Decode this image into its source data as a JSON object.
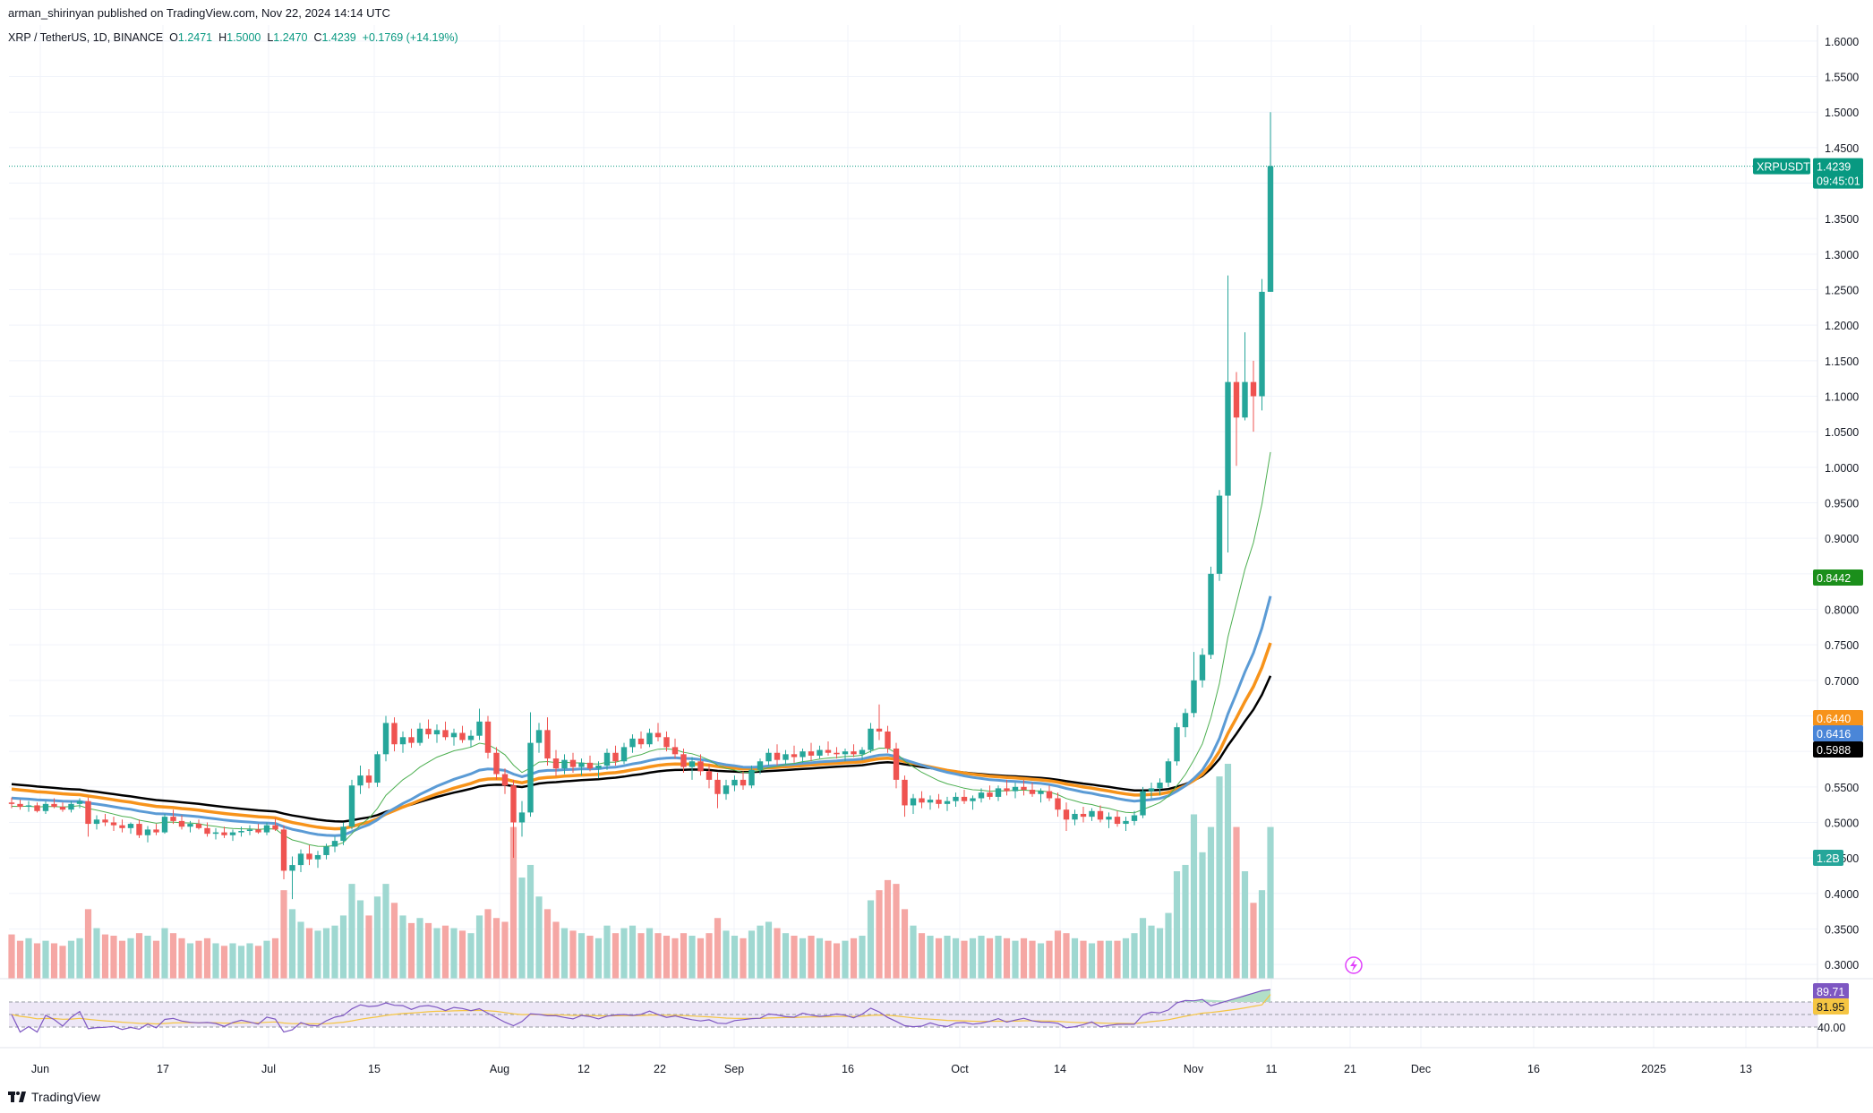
{
  "header": {
    "publisher": "arman_shirinyan published on TradingView.com, Nov 22, 2024 14:14 UTC",
    "symbol": "XRP / TetherUS, 1D, BINANCE",
    "o_label": "O",
    "o_value": "1.2471",
    "h_label": "H",
    "h_value": "1.5000",
    "l_label": "L",
    "l_value": "1.2470",
    "c_label": "C",
    "c_value": "1.4239",
    "change": "+0.1769 (+14.19%)"
  },
  "footer": {
    "brand": "TradingView"
  },
  "colors": {
    "up": "#26a69a",
    "down": "#ef5350",
    "vol_up": "#9fd8d1",
    "vol_down": "#f5a7a4",
    "ma_thin": "#4caf50",
    "ma_orange": "#f7931a",
    "ma_blue": "#5b9bd5",
    "ma_black": "#000000",
    "rsi_line": "#7e57c2",
    "rsi_ma": "#f5c542",
    "rsi_band": "#ede7f6"
  },
  "chart_data": {
    "type": "candlestick",
    "price_axis": {
      "min": 0.28,
      "max": 1.62,
      "ticks": [
        "1.6000",
        "1.5500",
        "1.5000",
        "1.4500",
        "1.4000",
        "1.3500",
        "1.3000",
        "1.2500",
        "1.2000",
        "1.1500",
        "1.1000",
        "1.0500",
        "1.0000",
        "0.9500",
        "0.9000",
        "0.8500",
        "0.8000",
        "0.7500",
        "0.7000",
        "0.6500",
        "0.6000",
        "0.5500",
        "0.5000",
        "0.4500",
        "0.4000",
        "0.3500",
        "0.3000"
      ]
    },
    "time_axis": [
      "Jun",
      "17",
      "Jul",
      "15",
      "Aug",
      "12",
      "22",
      "Sep",
      "16",
      "Oct",
      "14",
      "Nov",
      "11",
      "21",
      "Dec",
      "16",
      "2025",
      "13"
    ],
    "price_labels": [
      {
        "name": "XRPUSDT",
        "value": "1.4239",
        "countdown": "09:45:01",
        "color": "#089981"
      },
      {
        "value": "0.8442",
        "color": "#1b8f1b"
      },
      {
        "value": "0.6440",
        "color": "#f7931a"
      },
      {
        "value": "0.6416",
        "color": "#4a86d8"
      },
      {
        "value": "0.5988",
        "color": "#000000"
      },
      {
        "value": "1.2B",
        "color": "#26a69a"
      }
    ],
    "rsi": {
      "value": "89.71",
      "ma_value": "81.95",
      "level_label": "40.00",
      "range": [
        0,
        100
      ]
    },
    "candles": [
      [
        0.528,
        0.535,
        0.52,
        0.526,
        0.35
      ],
      [
        0.526,
        0.532,
        0.518,
        0.522,
        0.3
      ],
      [
        0.522,
        0.53,
        0.515,
        0.524,
        0.32
      ],
      [
        0.524,
        0.528,
        0.514,
        0.516,
        0.28
      ],
      [
        0.516,
        0.53,
        0.512,
        0.526,
        0.3
      ],
      [
        0.526,
        0.534,
        0.52,
        0.522,
        0.28
      ],
      [
        0.522,
        0.528,
        0.515,
        0.518,
        0.26
      ],
      [
        0.518,
        0.53,
        0.514,
        0.526,
        0.3
      ],
      [
        0.526,
        0.534,
        0.52,
        0.53,
        0.32
      ],
      [
        0.53,
        0.535,
        0.48,
        0.498,
        0.55
      ],
      [
        0.498,
        0.51,
        0.49,
        0.504,
        0.4
      ],
      [
        0.504,
        0.512,
        0.495,
        0.5,
        0.35
      ],
      [
        0.5,
        0.508,
        0.488,
        0.496,
        0.34
      ],
      [
        0.496,
        0.504,
        0.486,
        0.492,
        0.3
      ],
      [
        0.492,
        0.5,
        0.484,
        0.498,
        0.32
      ],
      [
        0.498,
        0.504,
        0.478,
        0.482,
        0.36
      ],
      [
        0.482,
        0.495,
        0.472,
        0.49,
        0.34
      ],
      [
        0.49,
        0.498,
        0.482,
        0.486,
        0.3
      ],
      [
        0.486,
        0.512,
        0.484,
        0.508,
        0.4
      ],
      [
        0.508,
        0.518,
        0.498,
        0.502,
        0.36
      ],
      [
        0.502,
        0.51,
        0.49,
        0.494,
        0.32
      ],
      [
        0.494,
        0.502,
        0.486,
        0.498,
        0.28
      ],
      [
        0.498,
        0.504,
        0.49,
        0.492,
        0.3
      ],
      [
        0.492,
        0.5,
        0.48,
        0.484,
        0.32
      ],
      [
        0.484,
        0.492,
        0.476,
        0.486,
        0.28
      ],
      [
        0.486,
        0.494,
        0.478,
        0.482,
        0.26
      ],
      [
        0.482,
        0.49,
        0.474,
        0.486,
        0.28
      ],
      [
        0.486,
        0.494,
        0.48,
        0.488,
        0.26
      ],
      [
        0.488,
        0.496,
        0.482,
        0.49,
        0.28
      ],
      [
        0.49,
        0.498,
        0.484,
        0.486,
        0.26
      ],
      [
        0.486,
        0.5,
        0.482,
        0.496,
        0.3
      ],
      [
        0.496,
        0.506,
        0.488,
        0.49,
        0.32
      ],
      [
        0.49,
        0.496,
        0.42,
        0.432,
        0.7
      ],
      [
        0.432,
        0.452,
        0.392,
        0.44,
        0.55
      ],
      [
        0.44,
        0.462,
        0.43,
        0.456,
        0.45
      ],
      [
        0.456,
        0.468,
        0.44,
        0.448,
        0.4
      ],
      [
        0.448,
        0.46,
        0.436,
        0.454,
        0.38
      ],
      [
        0.454,
        0.47,
        0.448,
        0.466,
        0.4
      ],
      [
        0.466,
        0.48,
        0.458,
        0.474,
        0.42
      ],
      [
        0.474,
        0.5,
        0.468,
        0.494,
        0.5
      ],
      [
        0.494,
        0.56,
        0.49,
        0.552,
        0.75
      ],
      [
        0.552,
        0.58,
        0.54,
        0.566,
        0.62
      ],
      [
        0.566,
        0.575,
        0.548,
        0.556,
        0.5
      ],
      [
        0.556,
        0.6,
        0.55,
        0.596,
        0.65
      ],
      [
        0.596,
        0.65,
        0.586,
        0.64,
        0.75
      ],
      [
        0.64,
        0.648,
        0.6,
        0.61,
        0.6
      ],
      [
        0.61,
        0.628,
        0.598,
        0.62,
        0.5
      ],
      [
        0.62,
        0.632,
        0.605,
        0.612,
        0.44
      ],
      [
        0.612,
        0.64,
        0.608,
        0.632,
        0.48
      ],
      [
        0.632,
        0.645,
        0.618,
        0.624,
        0.44
      ],
      [
        0.624,
        0.638,
        0.612,
        0.63,
        0.4
      ],
      [
        0.63,
        0.642,
        0.616,
        0.62,
        0.42
      ],
      [
        0.62,
        0.632,
        0.608,
        0.626,
        0.4
      ],
      [
        0.626,
        0.636,
        0.612,
        0.616,
        0.38
      ],
      [
        0.616,
        0.63,
        0.606,
        0.622,
        0.36
      ],
      [
        0.622,
        0.66,
        0.616,
        0.642,
        0.5
      ],
      [
        0.642,
        0.65,
        0.59,
        0.598,
        0.55
      ],
      [
        0.598,
        0.606,
        0.56,
        0.568,
        0.48
      ],
      [
        0.568,
        0.576,
        0.54,
        0.552,
        0.45
      ],
      [
        0.552,
        0.56,
        0.45,
        0.5,
        1.2
      ],
      [
        0.5,
        0.53,
        0.48,
        0.514,
        0.8
      ],
      [
        0.514,
        0.655,
        0.508,
        0.612,
        0.9
      ],
      [
        0.612,
        0.64,
        0.598,
        0.63,
        0.65
      ],
      [
        0.63,
        0.648,
        0.58,
        0.59,
        0.55
      ],
      [
        0.59,
        0.602,
        0.565,
        0.576,
        0.45
      ],
      [
        0.576,
        0.596,
        0.568,
        0.588,
        0.4
      ],
      [
        0.588,
        0.598,
        0.57,
        0.578,
        0.38
      ],
      [
        0.578,
        0.59,
        0.566,
        0.584,
        0.36
      ],
      [
        0.584,
        0.594,
        0.572,
        0.576,
        0.34
      ],
      [
        0.576,
        0.586,
        0.562,
        0.58,
        0.32
      ],
      [
        0.58,
        0.604,
        0.574,
        0.598,
        0.42
      ],
      [
        0.598,
        0.608,
        0.58,
        0.586,
        0.36
      ],
      [
        0.586,
        0.612,
        0.582,
        0.606,
        0.4
      ],
      [
        0.606,
        0.624,
        0.598,
        0.618,
        0.42
      ],
      [
        0.618,
        0.628,
        0.604,
        0.61,
        0.36
      ],
      [
        0.61,
        0.632,
        0.606,
        0.626,
        0.4
      ],
      [
        0.626,
        0.64,
        0.614,
        0.62,
        0.36
      ],
      [
        0.62,
        0.628,
        0.6,
        0.606,
        0.34
      ],
      [
        0.606,
        0.618,
        0.59,
        0.596,
        0.32
      ],
      [
        0.596,
        0.604,
        0.57,
        0.578,
        0.36
      ],
      [
        0.578,
        0.592,
        0.56,
        0.586,
        0.34
      ],
      [
        0.586,
        0.596,
        0.566,
        0.572,
        0.32
      ],
      [
        0.572,
        0.582,
        0.548,
        0.56,
        0.36
      ],
      [
        0.56,
        0.57,
        0.52,
        0.54,
        0.48
      ],
      [
        0.54,
        0.56,
        0.532,
        0.552,
        0.38
      ],
      [
        0.552,
        0.566,
        0.544,
        0.56,
        0.34
      ],
      [
        0.56,
        0.572,
        0.546,
        0.552,
        0.32
      ],
      [
        0.552,
        0.58,
        0.548,
        0.574,
        0.38
      ],
      [
        0.574,
        0.59,
        0.568,
        0.586,
        0.42
      ],
      [
        0.586,
        0.604,
        0.58,
        0.598,
        0.45
      ],
      [
        0.598,
        0.61,
        0.58,
        0.588,
        0.4
      ],
      [
        0.588,
        0.602,
        0.582,
        0.596,
        0.36
      ],
      [
        0.596,
        0.608,
        0.584,
        0.592,
        0.34
      ],
      [
        0.592,
        0.604,
        0.584,
        0.6,
        0.32
      ],
      [
        0.6,
        0.612,
        0.586,
        0.594,
        0.34
      ],
      [
        0.594,
        0.608,
        0.59,
        0.602,
        0.32
      ],
      [
        0.602,
        0.614,
        0.594,
        0.598,
        0.3
      ],
      [
        0.598,
        0.606,
        0.59,
        0.596,
        0.28
      ],
      [
        0.596,
        0.604,
        0.586,
        0.6,
        0.3
      ],
      [
        0.6,
        0.61,
        0.592,
        0.596,
        0.32
      ],
      [
        0.596,
        0.606,
        0.588,
        0.602,
        0.34
      ],
      [
        0.602,
        0.64,
        0.598,
        0.632,
        0.62
      ],
      [
        0.632,
        0.666,
        0.616,
        0.628,
        0.7
      ],
      [
        0.628,
        0.636,
        0.598,
        0.604,
        0.78
      ],
      [
        0.604,
        0.612,
        0.548,
        0.56,
        0.75
      ],
      [
        0.56,
        0.566,
        0.508,
        0.524,
        0.55
      ],
      [
        0.524,
        0.54,
        0.512,
        0.534,
        0.42
      ],
      [
        0.534,
        0.544,
        0.52,
        0.528,
        0.36
      ],
      [
        0.528,
        0.538,
        0.518,
        0.532,
        0.34
      ],
      [
        0.532,
        0.54,
        0.52,
        0.526,
        0.32
      ],
      [
        0.526,
        0.536,
        0.516,
        0.53,
        0.34
      ],
      [
        0.53,
        0.542,
        0.522,
        0.536,
        0.32
      ],
      [
        0.536,
        0.546,
        0.526,
        0.53,
        0.3
      ],
      [
        0.53,
        0.538,
        0.518,
        0.534,
        0.32
      ],
      [
        0.534,
        0.548,
        0.528,
        0.542,
        0.34
      ],
      [
        0.542,
        0.552,
        0.532,
        0.536,
        0.32
      ],
      [
        0.536,
        0.552,
        0.53,
        0.548,
        0.34
      ],
      [
        0.548,
        0.56,
        0.538,
        0.544,
        0.32
      ],
      [
        0.544,
        0.556,
        0.534,
        0.55,
        0.3
      ],
      [
        0.55,
        0.56,
        0.538,
        0.546,
        0.32
      ],
      [
        0.546,
        0.556,
        0.536,
        0.54,
        0.3
      ],
      [
        0.54,
        0.548,
        0.528,
        0.544,
        0.28
      ],
      [
        0.544,
        0.552,
        0.53,
        0.534,
        0.3
      ],
      [
        0.534,
        0.542,
        0.508,
        0.518,
        0.38
      ],
      [
        0.518,
        0.528,
        0.488,
        0.504,
        0.36
      ],
      [
        0.504,
        0.518,
        0.496,
        0.512,
        0.32
      ],
      [
        0.512,
        0.522,
        0.5,
        0.508,
        0.3
      ],
      [
        0.508,
        0.52,
        0.502,
        0.516,
        0.28
      ],
      [
        0.516,
        0.524,
        0.5,
        0.504,
        0.3
      ],
      [
        0.504,
        0.514,
        0.492,
        0.508,
        0.3
      ],
      [
        0.508,
        0.516,
        0.494,
        0.498,
        0.3
      ],
      [
        0.498,
        0.508,
        0.488,
        0.502,
        0.32
      ],
      [
        0.502,
        0.516,
        0.496,
        0.51,
        0.36
      ],
      [
        0.51,
        0.55,
        0.506,
        0.544,
        0.48
      ],
      [
        0.544,
        0.556,
        0.534,
        0.548,
        0.42
      ],
      [
        0.548,
        0.562,
        0.538,
        0.556,
        0.4
      ],
      [
        0.556,
        0.59,
        0.55,
        0.586,
        0.52
      ],
      [
        0.586,
        0.64,
        0.58,
        0.634,
        0.85
      ],
      [
        0.634,
        0.66,
        0.62,
        0.654,
        0.9
      ],
      [
        0.654,
        0.74,
        0.648,
        0.7,
        1.3
      ],
      [
        0.7,
        0.745,
        0.69,
        0.736,
        1.0
      ],
      [
        0.736,
        0.86,
        0.73,
        0.85,
        1.2
      ],
      [
        0.85,
        0.968,
        0.84,
        0.96,
        1.6
      ],
      [
        0.96,
        1.27,
        0.88,
        1.12,
        1.7
      ],
      [
        1.12,
        1.134,
        1.002,
        1.07,
        1.2
      ],
      [
        1.07,
        1.19,
        1.066,
        1.12,
        0.85
      ],
      [
        1.12,
        1.15,
        1.05,
        1.1,
        0.6
      ],
      [
        1.1,
        1.265,
        1.08,
        1.247,
        0.7
      ],
      [
        1.247,
        1.5,
        1.247,
        1.424,
        1.2
      ]
    ]
  }
}
